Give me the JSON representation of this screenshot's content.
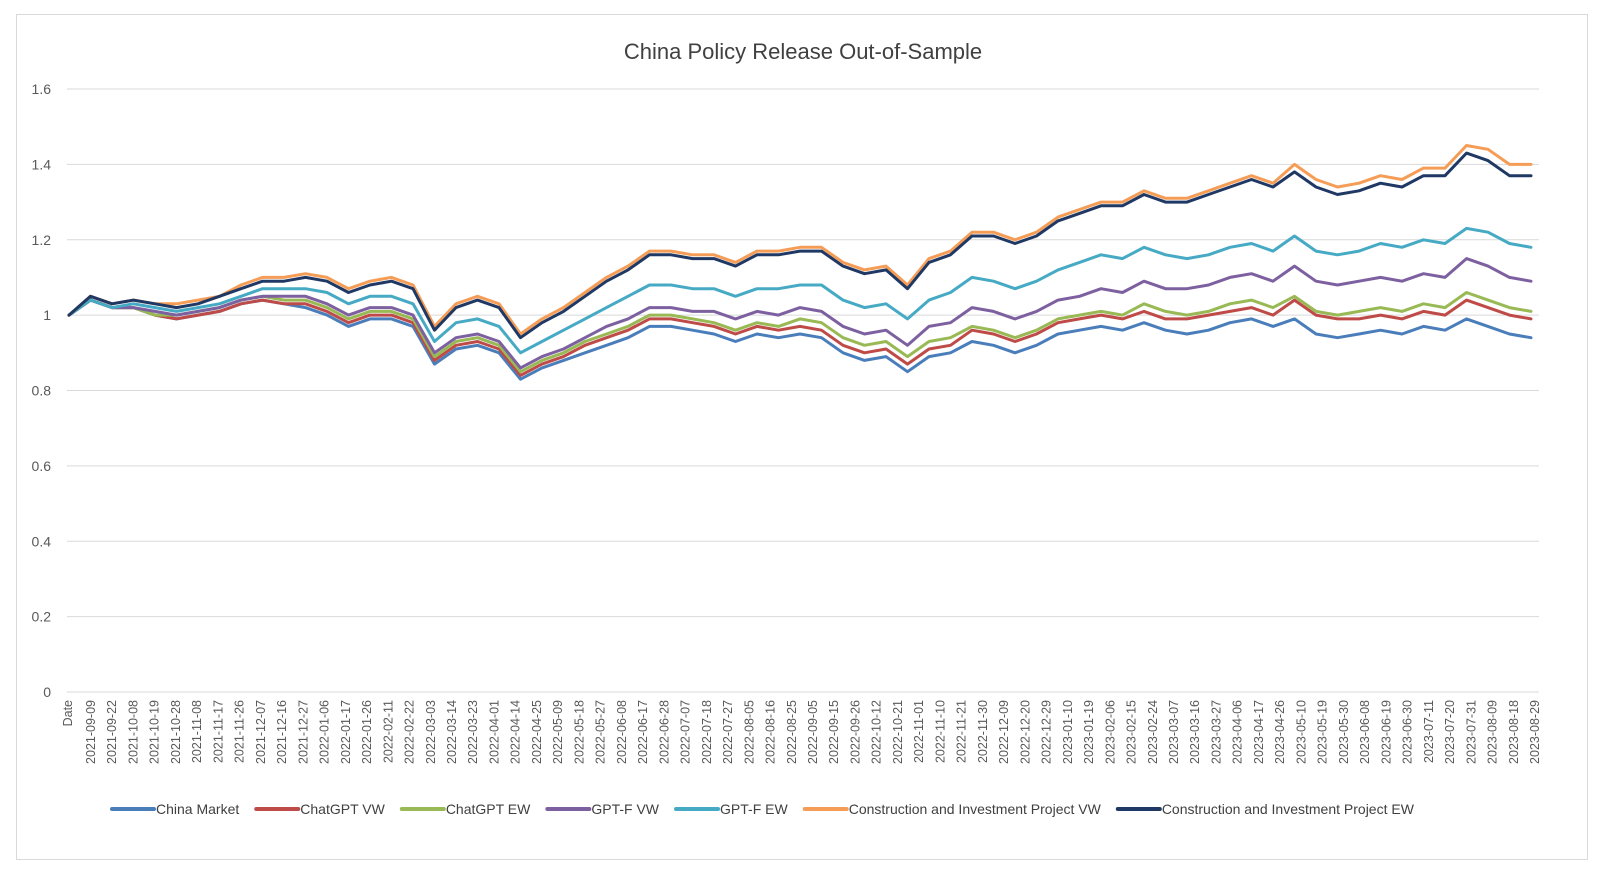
{
  "chart_data": {
    "type": "line",
    "title": "China Policy Release Out-of-Sample",
    "xlabel": "",
    "ylabel": "",
    "ylim": [
      0,
      1.6
    ],
    "yticks": [
      "0",
      "0.2",
      "0.4",
      "0.6",
      "0.8",
      "1",
      "1.2",
      "1.4",
      "1.6"
    ],
    "x_header": "Date",
    "categories": [
      "2021-09-09",
      "2021-09-22",
      "2021-10-08",
      "2021-10-19",
      "2021-10-28",
      "2021-11-08",
      "2021-11-17",
      "2021-11-26",
      "2021-12-07",
      "2021-12-16",
      "2021-12-27",
      "2022-01-06",
      "2022-01-17",
      "2022-01-26",
      "2022-02-11",
      "2022-02-22",
      "2022-03-03",
      "2022-03-14",
      "2022-03-23",
      "2022-04-01",
      "2022-04-14",
      "2022-04-25",
      "2022-05-09",
      "2022-05-18",
      "2022-05-27",
      "2022-06-08",
      "2022-06-17",
      "2022-06-28",
      "2022-07-07",
      "2022-07-18",
      "2022-07-27",
      "2022-08-05",
      "2022-08-16",
      "2022-08-25",
      "2022-09-05",
      "2022-09-15",
      "2022-09-26",
      "2022-10-12",
      "2022-10-21",
      "2022-11-01",
      "2022-11-10",
      "2022-11-21",
      "2022-11-30",
      "2022-12-09",
      "2022-12-20",
      "2022-12-29",
      "2023-01-10",
      "2023-01-19",
      "2023-02-06",
      "2023-02-15",
      "2023-02-24",
      "2023-03-07",
      "2023-03-16",
      "2023-03-27",
      "2023-04-06",
      "2023-04-17",
      "2023-04-26",
      "2023-05-10",
      "2023-05-19",
      "2023-05-30",
      "2023-06-08",
      "2023-06-19",
      "2023-06-30",
      "2023-07-11",
      "2023-07-20",
      "2023-07-31",
      "2023-08-09",
      "2023-08-18",
      "2023-08-29"
    ],
    "series": [
      {
        "name": "China Market",
        "color": "#4a7ebb",
        "values": [
          1.0,
          1.04,
          1.02,
          1.02,
          1.0,
          0.99,
          1.0,
          1.01,
          1.03,
          1.04,
          1.03,
          1.02,
          1.0,
          0.97,
          0.99,
          0.99,
          0.97,
          0.87,
          0.91,
          0.92,
          0.9,
          0.83,
          0.86,
          0.88,
          0.9,
          0.92,
          0.94,
          0.97,
          0.97,
          0.96,
          0.95,
          0.93,
          0.95,
          0.94,
          0.95,
          0.94,
          0.9,
          0.88,
          0.89,
          0.85,
          0.89,
          0.9,
          0.93,
          0.92,
          0.9,
          0.92,
          0.95,
          0.96,
          0.97,
          0.96,
          0.98,
          0.96,
          0.95,
          0.96,
          0.98,
          0.99,
          0.97,
          0.99,
          0.95,
          0.94,
          0.95,
          0.96,
          0.95,
          0.97,
          0.96,
          0.99,
          0.97,
          0.95,
          0.94
        ]
      },
      {
        "name": "ChatGPT VW",
        "color": "#be4b48",
        "values": [
          1.0,
          1.04,
          1.02,
          1.02,
          1.0,
          0.99,
          1.0,
          1.01,
          1.03,
          1.04,
          1.03,
          1.03,
          1.01,
          0.98,
          1.0,
          1.0,
          0.98,
          0.88,
          0.92,
          0.93,
          0.91,
          0.84,
          0.87,
          0.89,
          0.92,
          0.94,
          0.96,
          0.99,
          0.99,
          0.98,
          0.97,
          0.95,
          0.97,
          0.96,
          0.97,
          0.96,
          0.92,
          0.9,
          0.91,
          0.87,
          0.91,
          0.92,
          0.96,
          0.95,
          0.93,
          0.95,
          0.98,
          0.99,
          1.0,
          0.99,
          1.01,
          0.99,
          0.99,
          1.0,
          1.01,
          1.02,
          1.0,
          1.04,
          1.0,
          0.99,
          0.99,
          1.0,
          0.99,
          1.01,
          1.0,
          1.04,
          1.02,
          1.0,
          0.99
        ]
      },
      {
        "name": "ChatGPT EW",
        "color": "#98b954",
        "values": [
          1.0,
          1.04,
          1.02,
          1.02,
          1.0,
          1.0,
          1.01,
          1.02,
          1.04,
          1.05,
          1.04,
          1.04,
          1.02,
          0.99,
          1.01,
          1.01,
          0.99,
          0.89,
          0.93,
          0.94,
          0.92,
          0.85,
          0.88,
          0.9,
          0.93,
          0.95,
          0.97,
          1.0,
          1.0,
          0.99,
          0.98,
          0.96,
          0.98,
          0.97,
          0.99,
          0.98,
          0.94,
          0.92,
          0.93,
          0.89,
          0.93,
          0.94,
          0.97,
          0.96,
          0.94,
          0.96,
          0.99,
          1.0,
          1.01,
          1.0,
          1.03,
          1.01,
          1.0,
          1.01,
          1.03,
          1.04,
          1.02,
          1.05,
          1.01,
          1.0,
          1.01,
          1.02,
          1.01,
          1.03,
          1.02,
          1.06,
          1.04,
          1.02,
          1.01
        ]
      },
      {
        "name": "GPT-F VW",
        "color": "#7d60a0",
        "values": [
          1.0,
          1.04,
          1.02,
          1.02,
          1.01,
          1.0,
          1.01,
          1.02,
          1.04,
          1.05,
          1.05,
          1.05,
          1.03,
          1.0,
          1.02,
          1.02,
          1.0,
          0.9,
          0.94,
          0.95,
          0.93,
          0.86,
          0.89,
          0.91,
          0.94,
          0.97,
          0.99,
          1.02,
          1.02,
          1.01,
          1.01,
          0.99,
          1.01,
          1.0,
          1.02,
          1.01,
          0.97,
          0.95,
          0.96,
          0.92,
          0.97,
          0.98,
          1.02,
          1.01,
          0.99,
          1.01,
          1.04,
          1.05,
          1.07,
          1.06,
          1.09,
          1.07,
          1.07,
          1.08,
          1.1,
          1.11,
          1.09,
          1.13,
          1.09,
          1.08,
          1.09,
          1.1,
          1.09,
          1.11,
          1.1,
          1.15,
          1.13,
          1.1,
          1.09
        ]
      },
      {
        "name": "GPT-F EW",
        "color": "#46aac5",
        "values": [
          1.0,
          1.04,
          1.02,
          1.03,
          1.02,
          1.01,
          1.02,
          1.03,
          1.05,
          1.07,
          1.07,
          1.07,
          1.06,
          1.03,
          1.05,
          1.05,
          1.03,
          0.93,
          0.98,
          0.99,
          0.97,
          0.9,
          0.93,
          0.96,
          0.99,
          1.02,
          1.05,
          1.08,
          1.08,
          1.07,
          1.07,
          1.05,
          1.07,
          1.07,
          1.08,
          1.08,
          1.04,
          1.02,
          1.03,
          0.99,
          1.04,
          1.06,
          1.1,
          1.09,
          1.07,
          1.09,
          1.12,
          1.14,
          1.16,
          1.15,
          1.18,
          1.16,
          1.15,
          1.16,
          1.18,
          1.19,
          1.17,
          1.21,
          1.17,
          1.16,
          1.17,
          1.19,
          1.18,
          1.2,
          1.19,
          1.23,
          1.22,
          1.19,
          1.18
        ]
      },
      {
        "name": "Construction and Investment Project VW",
        "color": "#f59d56",
        "values": [
          1.0,
          1.05,
          1.03,
          1.04,
          1.03,
          1.03,
          1.04,
          1.05,
          1.08,
          1.1,
          1.1,
          1.11,
          1.1,
          1.07,
          1.09,
          1.1,
          1.08,
          0.97,
          1.03,
          1.05,
          1.03,
          0.95,
          0.99,
          1.02,
          1.06,
          1.1,
          1.13,
          1.17,
          1.17,
          1.16,
          1.16,
          1.14,
          1.17,
          1.17,
          1.18,
          1.18,
          1.14,
          1.12,
          1.13,
          1.08,
          1.15,
          1.17,
          1.22,
          1.22,
          1.2,
          1.22,
          1.26,
          1.28,
          1.3,
          1.3,
          1.33,
          1.31,
          1.31,
          1.33,
          1.35,
          1.37,
          1.35,
          1.4,
          1.36,
          1.34,
          1.35,
          1.37,
          1.36,
          1.39,
          1.39,
          1.45,
          1.44,
          1.4,
          1.4
        ]
      },
      {
        "name": "Construction and Investment Project EW",
        "color": "#1f3864",
        "values": [
          1.0,
          1.05,
          1.03,
          1.04,
          1.03,
          1.02,
          1.03,
          1.05,
          1.07,
          1.09,
          1.09,
          1.1,
          1.09,
          1.06,
          1.08,
          1.09,
          1.07,
          0.96,
          1.02,
          1.04,
          1.02,
          0.94,
          0.98,
          1.01,
          1.05,
          1.09,
          1.12,
          1.16,
          1.16,
          1.15,
          1.15,
          1.13,
          1.16,
          1.16,
          1.17,
          1.17,
          1.13,
          1.11,
          1.12,
          1.07,
          1.14,
          1.16,
          1.21,
          1.21,
          1.19,
          1.21,
          1.25,
          1.27,
          1.29,
          1.29,
          1.32,
          1.3,
          1.3,
          1.32,
          1.34,
          1.36,
          1.34,
          1.38,
          1.34,
          1.32,
          1.33,
          1.35,
          1.34,
          1.37,
          1.37,
          1.43,
          1.41,
          1.37,
          1.37
        ]
      }
    ],
    "grid": "horizontal",
    "legend_position": "bottom"
  }
}
